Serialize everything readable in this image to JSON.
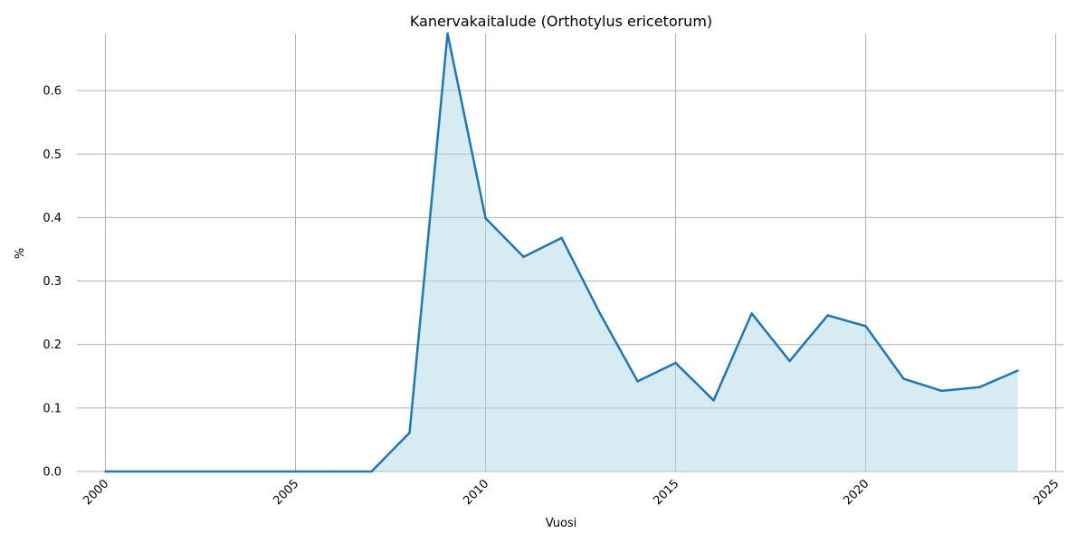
{
  "chart_data": {
    "type": "area",
    "title": "Kanervakaitalude (Orthotylus ericetorum)",
    "xlabel": "Vuosi",
    "ylabel": "%",
    "xlim": [
      1999.25,
      2025.2
    ],
    "ylim": [
      0,
      0.69
    ],
    "xticks": [
      2000,
      2005,
      2010,
      2015,
      2020,
      2025
    ],
    "yticks": [
      0.0,
      0.1,
      0.2,
      0.3,
      0.4,
      0.5,
      0.6
    ],
    "grid": true,
    "line_color": "#1f77b4",
    "fill_color": "#add8e6",
    "x": [
      2000,
      2001,
      2002,
      2003,
      2004,
      2005,
      2006,
      2007,
      2008,
      2009,
      2010,
      2011,
      2012,
      2013,
      2014,
      2015,
      2016,
      2017,
      2018,
      2019,
      2020,
      2021,
      2022,
      2023,
      2024
    ],
    "y": [
      0,
      0,
      0,
      0,
      0,
      0,
      0,
      0,
      0.061,
      0.69,
      0.399,
      0.338,
      0.368,
      0.25,
      0.142,
      0.171,
      0.112,
      0.249,
      0.174,
      0.246,
      0.229,
      0.146,
      0.127,
      0.133,
      0.159
    ]
  }
}
